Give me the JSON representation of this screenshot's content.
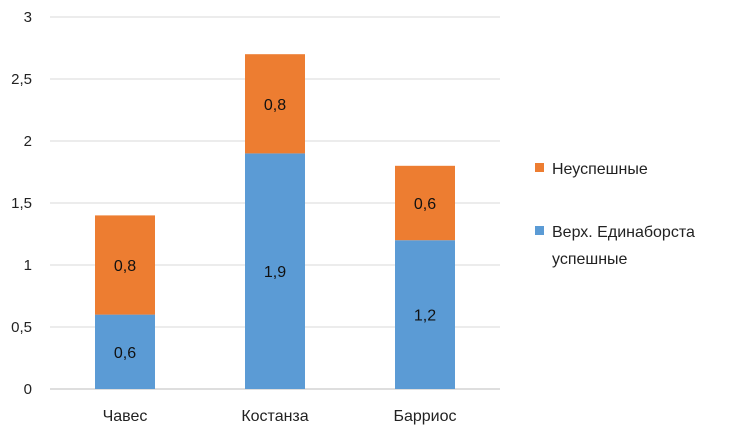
{
  "chart_data": {
    "type": "bar",
    "stacked": true,
    "categories": [
      "Чавес",
      "Костанза",
      "Барриос"
    ],
    "series": [
      {
        "name": "Верх. Единаборста успешные",
        "values": [
          0.6,
          1.9,
          1.2
        ],
        "labels": [
          "0,6",
          "1,9",
          "1,2"
        ],
        "color": "#5b9bd5"
      },
      {
        "name": "Неуспешные",
        "values": [
          0.8,
          0.8,
          0.6
        ],
        "labels": [
          "0,8",
          "0,8",
          "0,6"
        ],
        "color": "#ed7d31"
      }
    ],
    "yticks": [
      "0",
      "0,5",
      "1",
      "1,5",
      "2",
      "2,5",
      "3"
    ],
    "ylim": [
      0,
      3
    ],
    "grid": true,
    "legend": {
      "position": "right",
      "items": [
        {
          "label_lines": [
            "Неуспешные"
          ],
          "color": "#ed7d31"
        },
        {
          "label_lines": [
            "Верх. Единаборста",
            "успешные"
          ],
          "color": "#5b9bd5"
        }
      ]
    }
  }
}
